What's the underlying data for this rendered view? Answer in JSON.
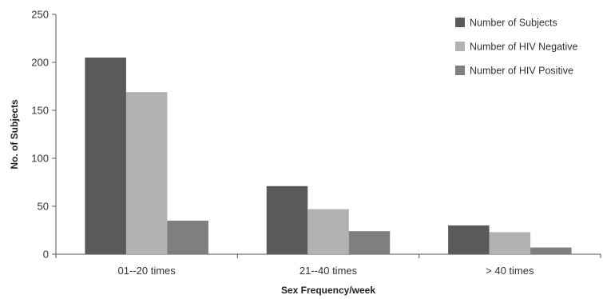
{
  "chart_data": {
    "type": "bar",
    "title": "",
    "xlabel": "Sex Frequency/week",
    "ylabel": "No. of Subjects",
    "ylim": [
      0,
      250
    ],
    "yticks": [
      0,
      50,
      100,
      150,
      200,
      250
    ],
    "grid": false,
    "legend_position": "top-right",
    "categories": [
      "01--20 times",
      "21--40 times",
      "> 40 times"
    ],
    "series": [
      {
        "name": "Number of Subjects",
        "color": "#5a5a5a",
        "values": [
          205,
          71,
          30
        ]
      },
      {
        "name": "Number of HIV Negative",
        "color": "#b2b2b2",
        "values": [
          169,
          47,
          23
        ]
      },
      {
        "name": "Number of HIV Positive",
        "color": "#7f7f7f",
        "values": [
          35,
          24,
          7
        ]
      }
    ]
  }
}
